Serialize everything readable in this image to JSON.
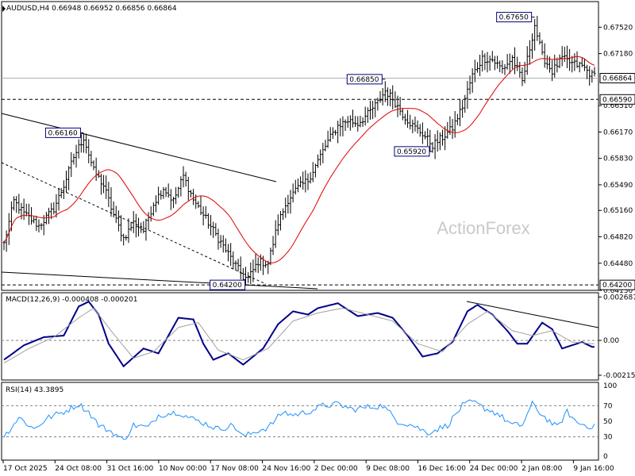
{
  "chart_data": [
    {
      "type": "candlestick",
      "symbol_label": "AUDUSD,H4",
      "ohlc_text": "0.66948 0.66952 0.66856 0.66864",
      "last_price_label": "0.66864",
      "watermark": "ActionForex",
      "ylim": [
        0.6413,
        0.6785
      ],
      "y_ticks": [
        "0.67520",
        "0.67180",
        "0.66864",
        "0.66510",
        "0.66170",
        "0.65830",
        "0.65490",
        "0.65160",
        "0.64820",
        "0.64480",
        "0.64130"
      ],
      "y_tick_values": [
        0.6752,
        0.6718,
        0.66864,
        0.6651,
        0.6617,
        0.6583,
        0.6549,
        0.6516,
        0.6482,
        0.6448,
        0.6413
      ],
      "x_ticks": [
        "17 Oct 2025",
        "24 Oct 08:00",
        "31 Oct 16:00",
        "10 Nov 00:00",
        "17 Nov 08:00",
        "24 Nov 16:00",
        "2 Dec 00:00",
        "9 Dec 08:00",
        "16 Dec 16:00",
        "24 Dec 00:00",
        "2 Jan 08:00",
        "9 Jan 16:00"
      ],
      "annotations": [
        {
          "label": "0.67650",
          "value": 0.6765,
          "bar": 213
        },
        {
          "label": "0.66850",
          "value": 0.6685,
          "bar": 153
        },
        {
          "label": "0.66160",
          "value": 0.6616,
          "bar": 32
        },
        {
          "label": "0.65920",
          "value": 0.6592,
          "bar": 172
        },
        {
          "label": "0.64200",
          "value": 0.642,
          "bar": 98
        }
      ],
      "horizontal_levels": [
        {
          "label": "0.66590",
          "value": 0.6659,
          "style": "dashed"
        },
        {
          "label": "0.64200",
          "value": 0.642,
          "style": "dashed"
        }
      ],
      "moving_average": "red line",
      "colors": {
        "candles": "#000000",
        "ma": "#e00000",
        "label_box": "#000080",
        "level_line": "#000000"
      },
      "key_points": [
        [
          0,
          0.6473
        ],
        [
          4,
          0.6528
        ],
        [
          8,
          0.6512
        ],
        [
          14,
          0.6496
        ],
        [
          20,
          0.6518
        ],
        [
          24,
          0.6548
        ],
        [
          28,
          0.6585
        ],
        [
          32,
          0.661
        ],
        [
          36,
          0.6567
        ],
        [
          40,
          0.6548
        ],
        [
          44,
          0.651
        ],
        [
          48,
          0.648
        ],
        [
          52,
          0.65
        ],
        [
          56,
          0.649
        ],
        [
          60,
          0.6525
        ],
        [
          64,
          0.6545
        ],
        [
          68,
          0.6528
        ],
        [
          72,
          0.656
        ],
        [
          76,
          0.653
        ],
        [
          80,
          0.651
        ],
        [
          84,
          0.649
        ],
        [
          88,
          0.647
        ],
        [
          92,
          0.645
        ],
        [
          96,
          0.643
        ],
        [
          98,
          0.6428
        ],
        [
          102,
          0.645
        ],
        [
          106,
          0.6448
        ],
        [
          110,
          0.65
        ],
        [
          114,
          0.653
        ],
        [
          118,
          0.6545
        ],
        [
          122,
          0.6555
        ],
        [
          126,
          0.658
        ],
        [
          130,
          0.6605
        ],
        [
          134,
          0.6625
        ],
        [
          138,
          0.6632
        ],
        [
          142,
          0.6628
        ],
        [
          146,
          0.664
        ],
        [
          150,
          0.6655
        ],
        [
          153,
          0.667
        ],
        [
          156,
          0.666
        ],
        [
          160,
          0.664
        ],
        [
          164,
          0.6625
        ],
        [
          168,
          0.6615
        ],
        [
          172,
          0.66
        ],
        [
          176,
          0.661
        ],
        [
          180,
          0.6622
        ],
        [
          184,
          0.665
        ],
        [
          188,
          0.669
        ],
        [
          192,
          0.6712
        ],
        [
          196,
          0.671
        ],
        [
          200,
          0.6698
        ],
        [
          204,
          0.6712
        ],
        [
          208,
          0.6682
        ],
        [
          211,
          0.6725
        ],
        [
          213,
          0.6755
        ],
        [
          216,
          0.6715
        ],
        [
          220,
          0.6695
        ],
        [
          224,
          0.6712
        ],
        [
          228,
          0.6705
        ],
        [
          232,
          0.6702
        ],
        [
          236,
          0.669
        ]
      ]
    },
    {
      "type": "line",
      "title": "MACD(12,26,9) -0.000408 -0.000201",
      "ylim": [
        -0.00245,
        0.00295
      ],
      "y_ticks": [
        "0.002687",
        "0.00",
        "-0.002154"
      ],
      "y_tick_values": [
        0.002687,
        0.0,
        -0.002154
      ],
      "series": [
        {
          "name": "MACD",
          "color": "#00008b",
          "key_points": [
            [
              0,
              -0.0012
            ],
            [
              8,
              -0.0003
            ],
            [
              16,
              0.0002
            ],
            [
              24,
              0.0003
            ],
            [
              30,
              0.0021
            ],
            [
              34,
              0.0024
            ],
            [
              38,
              0.0016
            ],
            [
              42,
              -0.0002
            ],
            [
              48,
              -0.0016
            ],
            [
              56,
              -0.0005
            ],
            [
              62,
              -0.0008
            ],
            [
              70,
              0.0014
            ],
            [
              76,
              0.0013
            ],
            [
              80,
              -0.0002
            ],
            [
              84,
              -0.0012
            ],
            [
              90,
              -0.0008
            ],
            [
              96,
              -0.0015
            ],
            [
              104,
              -0.0005
            ],
            [
              110,
              0.001
            ],
            [
              116,
              0.0018
            ],
            [
              122,
              0.0016
            ],
            [
              126,
              0.002
            ],
            [
              134,
              0.0023
            ],
            [
              142,
              0.0015
            ],
            [
              150,
              0.0017
            ],
            [
              156,
              0.0014
            ],
            [
              162,
              0.0003
            ],
            [
              168,
              -0.001
            ],
            [
              174,
              -0.0008
            ],
            [
              180,
              -0.0001
            ],
            [
              186,
              0.0018
            ],
            [
              190,
              0.0022
            ],
            [
              196,
              0.0016
            ],
            [
              202,
              0.0006
            ],
            [
              206,
              -0.0002
            ],
            [
              210,
              -0.0002
            ],
            [
              216,
              0.0011
            ],
            [
              220,
              0.0007
            ],
            [
              224,
              -0.0005
            ],
            [
              228,
              -0.0003
            ],
            [
              232,
              -0.0001
            ],
            [
              236,
              -0.0004
            ]
          ]
        },
        {
          "name": "Signal",
          "color": "#a0a0a0",
          "key_points": [
            [
              0,
              -0.0014
            ],
            [
              10,
              -0.0005
            ],
            [
              20,
              0.0002
            ],
            [
              30,
              0.0014
            ],
            [
              36,
              0.002
            ],
            [
              44,
              0.0004
            ],
            [
              52,
              -0.0011
            ],
            [
              60,
              -0.0007
            ],
            [
              70,
              0.0008
            ],
            [
              78,
              0.0011
            ],
            [
              86,
              -0.0006
            ],
            [
              96,
              -0.0012
            ],
            [
              106,
              -0.0005
            ],
            [
              116,
              0.0012
            ],
            [
              126,
              0.0017
            ],
            [
              136,
              0.002
            ],
            [
              146,
              0.0016
            ],
            [
              156,
              0.0012
            ],
            [
              166,
              -0.0002
            ],
            [
              176,
              -0.0007
            ],
            [
              186,
              0.001
            ],
            [
              194,
              0.0018
            ],
            [
              204,
              0.0006
            ],
            [
              212,
              0.0003
            ],
            [
              220,
              0.0006
            ],
            [
              228,
              -0.0001
            ],
            [
              236,
              -0.0002
            ]
          ]
        }
      ]
    },
    {
      "type": "line",
      "title": "RSI(14) 43.3895",
      "ylim": [
        0,
        100
      ],
      "y_ticks": [
        "100",
        "70",
        "50",
        "30",
        "0"
      ],
      "y_tick_values": [
        100,
        70,
        50,
        30,
        0
      ],
      "levels": [
        70,
        30
      ],
      "series": [
        {
          "name": "RSI",
          "color": "#1e90ff",
          "key_points": [
            [
              0,
              30
            ],
            [
              6,
              55
            ],
            [
              12,
              40
            ],
            [
              18,
              55
            ],
            [
              24,
              62
            ],
            [
              30,
              72
            ],
            [
              34,
              62
            ],
            [
              38,
              45
            ],
            [
              44,
              35
            ],
            [
              48,
              25
            ],
            [
              52,
              45
            ],
            [
              58,
              42
            ],
            [
              62,
              58
            ],
            [
              70,
              62
            ],
            [
              74,
              55
            ],
            [
              80,
              48
            ],
            [
              86,
              40
            ],
            [
              92,
              45
            ],
            [
              96,
              30
            ],
            [
              102,
              38
            ],
            [
              106,
              42
            ],
            [
              112,
              62
            ],
            [
              116,
              58
            ],
            [
              122,
              62
            ],
            [
              128,
              70
            ],
            [
              134,
              72
            ],
            [
              140,
              65
            ],
            [
              146,
              68
            ],
            [
              152,
              70
            ],
            [
              158,
              50
            ],
            [
              164,
              45
            ],
            [
              170,
              35
            ],
            [
              174,
              40
            ],
            [
              178,
              45
            ],
            [
              184,
              70
            ],
            [
              188,
              75
            ],
            [
              192,
              68
            ],
            [
              198,
              60
            ],
            [
              204,
              45
            ],
            [
              208,
              45
            ],
            [
              212,
              72
            ],
            [
              216,
              58
            ],
            [
              222,
              42
            ],
            [
              226,
              62
            ],
            [
              230,
              48
            ],
            [
              236,
              43
            ]
          ]
        }
      ]
    }
  ]
}
